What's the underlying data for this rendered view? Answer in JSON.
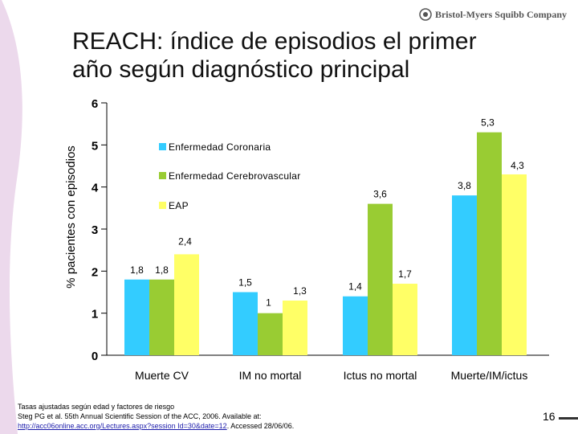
{
  "brand": {
    "name": "Bristol-Myers Squibb Company",
    "icon": "bms-logo-icon"
  },
  "slide": {
    "title": "REACH: índice de episodios el primer\naño según diagnóstico principal",
    "footnote": {
      "line1": "Tasas ajustadas según edad y factores de riesgo",
      "line2": "Steg PG et al. 55th Annual Scientific Session of the ACC, 2006. Available at:",
      "link": "http://acc06online.acc.org/Lectures.aspx?session Id=30&date=12",
      "line3_suffix": ". Accessed 28/06/06."
    },
    "page_number": "16"
  },
  "colors": {
    "Enfermedad Coronaria": "#33ccff",
    "Enfermedad Cerebrovascular": "#99cc33",
    "EAP": "#ffff66"
  },
  "chart_data": {
    "type": "bar",
    "title": "",
    "xlabel": "",
    "ylabel": "% pacientes con episodios",
    "ylim": [
      0,
      6
    ],
    "yticks": [
      "0",
      "1",
      "2",
      "3",
      "4",
      "5",
      "6"
    ],
    "grid": false,
    "legend_position": "top-left",
    "categories": [
      "Muerte CV",
      "IM no mortal",
      "Ictus no mortal",
      "Muerte/IM/ictus"
    ],
    "series": [
      {
        "name": "Enfermedad Coronaria",
        "values": [
          1.8,
          1.5,
          1.4,
          3.8
        ],
        "labels": [
          "1,8",
          "1,5",
          "1,4",
          "3,8"
        ]
      },
      {
        "name": "Enfermedad Cerebrovascular",
        "values": [
          1.8,
          1.0,
          3.6,
          5.3
        ],
        "labels": [
          "1,8",
          "1",
          "3,6",
          "5,3"
        ]
      },
      {
        "name": "EAP",
        "values": [
          2.4,
          1.3,
          1.7,
          4.3
        ],
        "labels": [
          "2,4",
          "1,3",
          "1,7",
          "4,3"
        ]
      }
    ]
  }
}
